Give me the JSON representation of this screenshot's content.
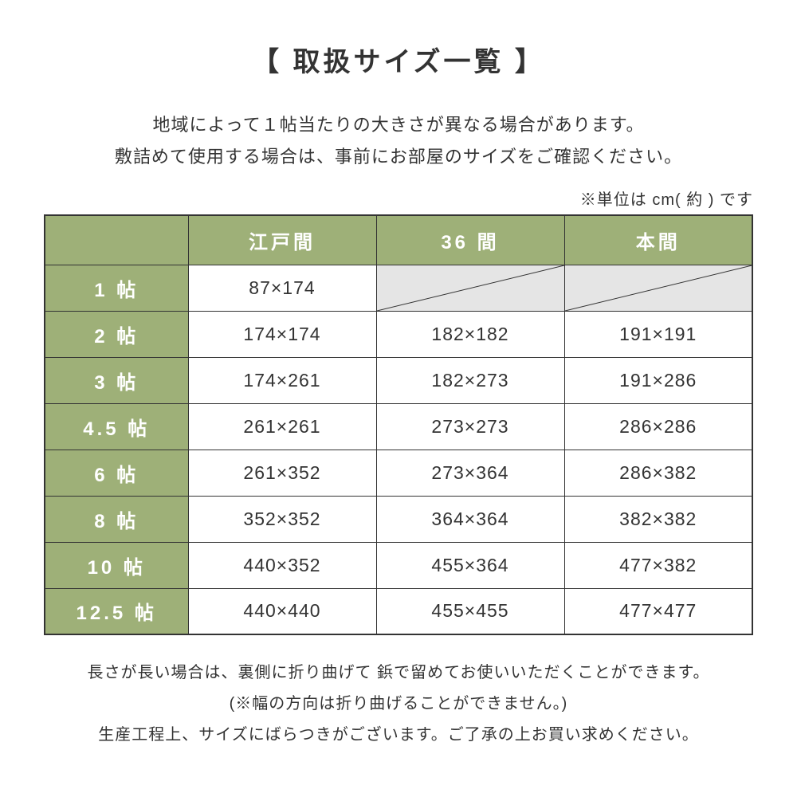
{
  "title": "【 取扱サイズ一覧 】",
  "intro_line1": "地域によって１帖当たりの大きさが異なる場合があります。",
  "intro_line2": "敷詰めて使用する場合は、事前にお部屋のサイズをご確認ください。",
  "unit_note": "※単位は cm( 約 ) です",
  "columns": [
    "",
    "江戸間",
    "36 間",
    "本間"
  ],
  "rows": [
    {
      "label": "1 帖",
      "cells": [
        "87×174",
        null,
        null
      ]
    },
    {
      "label": "2 帖",
      "cells": [
        "174×174",
        "182×182",
        "191×191"
      ]
    },
    {
      "label": "3 帖",
      "cells": [
        "174×261",
        "182×273",
        "191×286"
      ]
    },
    {
      "label": "4.5 帖",
      "cells": [
        "261×261",
        "273×273",
        "286×286"
      ]
    },
    {
      "label": "6 帖",
      "cells": [
        "261×352",
        "273×364",
        "286×382"
      ]
    },
    {
      "label": "8 帖",
      "cells": [
        "352×352",
        "364×364",
        "382×382"
      ]
    },
    {
      "label": "10 帖",
      "cells": [
        "440×352",
        "455×364",
        "477×382"
      ]
    },
    {
      "label": "12.5 帖",
      "cells": [
        "440×440",
        "455×455",
        "477×477"
      ]
    }
  ],
  "footer": {
    "line1": "長さが長い場合は、裏側に折り曲げて 鋲で留めてお使いいただくことができます。",
    "line2": "(※幅の方向は折り曲げることができません。)",
    "line3": "生産工程上、サイズにばらつきがございます。ご了承の上お買い求めください。"
  },
  "style": {
    "header_bg": "#9eb078",
    "header_fg": "#ffffff",
    "na_bg": "#e5e5e5",
    "border_color": "#333333",
    "text_color": "#333333",
    "background": "#ffffff",
    "title_fontsize": 34,
    "body_fontsize": 22,
    "cell_fontsize": 23,
    "footer_fontsize": 20
  }
}
